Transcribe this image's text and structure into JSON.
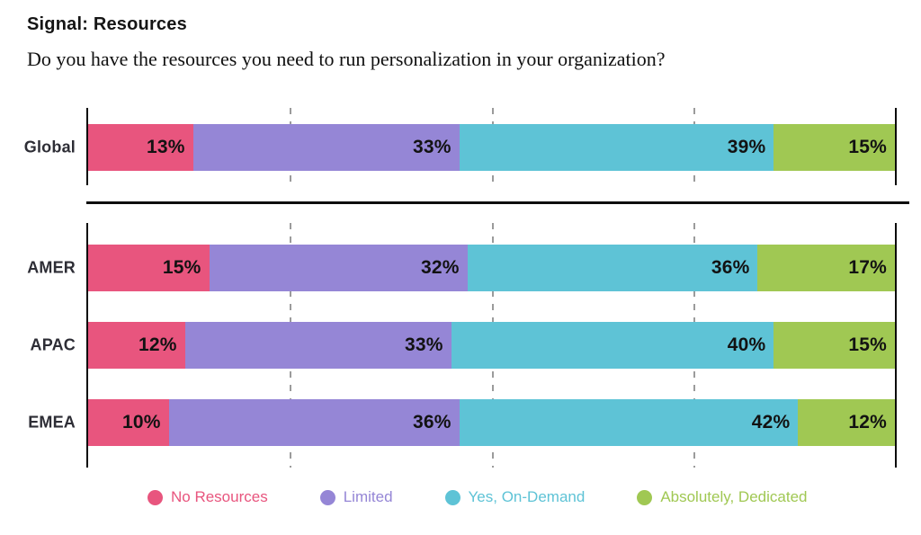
{
  "header": {
    "title": "Signal: Resources",
    "question": "Do you have the resources you need to run personalization in your organization?"
  },
  "chart_data": {
    "type": "bar",
    "orientation": "horizontal",
    "stacked": true,
    "unit": "%",
    "title": "Signal: Resources",
    "xlabel": "",
    "ylabel": "",
    "xlim": [
      0,
      100
    ],
    "gridlines_pct": [
      25,
      50,
      75
    ],
    "legend_position": "bottom",
    "categories": [
      "Global",
      "AMER",
      "APAC",
      "EMEA"
    ],
    "sections": [
      [
        "Global"
      ],
      [
        "AMER",
        "APAC",
        "EMEA"
      ]
    ],
    "series": [
      {
        "name": "No Resources",
        "color": "#E8557E",
        "values": [
          13,
          15,
          12,
          10
        ]
      },
      {
        "name": "Limited",
        "color": "#9586D6",
        "values": [
          33,
          32,
          33,
          36
        ]
      },
      {
        "name": "Yes, On-Demand",
        "color": "#5EC3D6",
        "values": [
          39,
          36,
          40,
          42
        ]
      },
      {
        "name": "Absolutely, Dedicated",
        "color": "#A0C853",
        "values": [
          15,
          17,
          15,
          12
        ]
      }
    ],
    "colors": {
      "axis": "#0b0b0b",
      "gridline": "#9b9b9b",
      "value_label": "#121212",
      "category_label": "#2d2d35"
    }
  }
}
